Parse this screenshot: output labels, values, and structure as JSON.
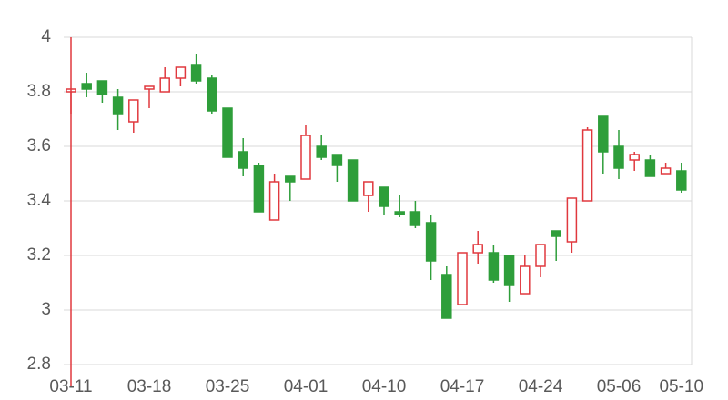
{
  "chart_data": {
    "type": "candlestick",
    "categories": [
      "03-11",
      null,
      null,
      null,
      null,
      "03-18",
      null,
      null,
      null,
      null,
      "03-25",
      null,
      null,
      null,
      null,
      "04-01",
      null,
      null,
      null,
      null,
      "04-10",
      null,
      null,
      null,
      null,
      "04-17",
      null,
      null,
      null,
      null,
      "04-24",
      null,
      null,
      null,
      null,
      "05-06",
      null,
      null,
      null,
      "05-10"
    ],
    "open": [
      3.8,
      3.83,
      3.84,
      3.78,
      3.69,
      3.81,
      3.8,
      3.85,
      3.9,
      3.85,
      3.74,
      3.58,
      3.53,
      3.33,
      3.49,
      3.48,
      3.6,
      3.57,
      3.55,
      3.42,
      3.45,
      3.36,
      3.36,
      3.32,
      3.13,
      3.02,
      3.21,
      3.21,
      3.2,
      3.06,
      3.16,
      3.29,
      3.25,
      3.4,
      3.71,
      3.6,
      3.55,
      3.55,
      3.5,
      3.51
    ],
    "high": [
      3.81,
      3.87,
      3.84,
      3.81,
      3.77,
      3.82,
      3.89,
      3.89,
      3.94,
      3.86,
      3.74,
      3.63,
      3.54,
      3.5,
      3.49,
      3.68,
      3.64,
      3.57,
      3.55,
      3.47,
      3.45,
      3.42,
      3.4,
      3.35,
      3.16,
      3.21,
      3.29,
      3.24,
      3.2,
      3.2,
      3.24,
      3.29,
      3.41,
      3.67,
      3.71,
      3.66,
      3.58,
      3.57,
      3.54,
      3.54
    ],
    "low": [
      3.72,
      3.78,
      3.76,
      3.66,
      3.65,
      3.74,
      3.8,
      3.82,
      3.83,
      3.72,
      3.56,
      3.49,
      3.36,
      3.33,
      3.4,
      3.48,
      3.55,
      3.47,
      3.4,
      3.36,
      3.35,
      3.34,
      3.3,
      3.11,
      2.97,
      3.02,
      3.17,
      3.1,
      3.03,
      3.06,
      3.12,
      3.18,
      3.21,
      3.4,
      3.5,
      3.48,
      3.51,
      3.49,
      3.5,
      3.43
    ],
    "close": [
      3.81,
      3.81,
      3.79,
      3.72,
      3.77,
      3.82,
      3.85,
      3.89,
      3.84,
      3.73,
      3.56,
      3.52,
      3.36,
      3.47,
      3.47,
      3.64,
      3.56,
      3.53,
      3.4,
      3.47,
      3.38,
      3.35,
      3.31,
      3.18,
      2.97,
      3.21,
      3.24,
      3.11,
      3.09,
      3.16,
      3.24,
      3.27,
      3.41,
      3.66,
      3.58,
      3.52,
      3.57,
      3.49,
      3.52,
      3.44
    ],
    "up_color": "#e0383e",
    "down_color": "#2e9e3a",
    "ylim": [
      2.8,
      4
    ],
    "yticks": [
      2.8,
      3,
      3.2,
      3.4,
      3.6,
      3.8,
      4
    ],
    "grid": true
  }
}
